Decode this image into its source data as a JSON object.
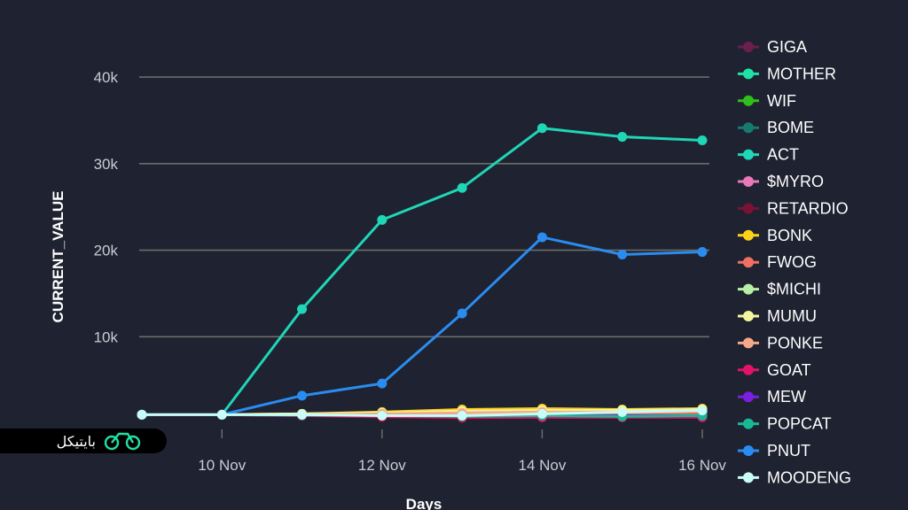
{
  "chart_data": {
    "type": "line",
    "xlabel": "Days",
    "ylabel": "CURRENT_VALUE",
    "x": [
      9,
      10,
      11,
      12,
      13,
      14,
      15,
      16
    ],
    "x_ticks": [
      {
        "value": 10,
        "label": "10 Nov"
      },
      {
        "value": 12,
        "label": "12 Nov"
      },
      {
        "value": 14,
        "label": "14 Nov"
      },
      {
        "value": 16,
        "label": "16 Nov"
      }
    ],
    "y_ticks": [
      {
        "value": 10000,
        "label": "10k"
      },
      {
        "value": 20000,
        "label": "20k"
      },
      {
        "value": 30000,
        "label": "30k"
      },
      {
        "value": 40000,
        "label": "40k"
      }
    ],
    "xlim": [
      9,
      16
    ],
    "ylim": [
      -500,
      44000
    ],
    "grid": true,
    "legend_position": "right",
    "series": [
      {
        "name": "GIGA",
        "color": "#6b1f4f",
        "values": [
          1000,
          1000,
          1000,
          1000,
          1000,
          1100,
          1100,
          1200
        ]
      },
      {
        "name": "MOTHER",
        "color": "#1ee3a6",
        "values": [
          1000,
          1000,
          1000,
          900,
          800,
          900,
          900,
          1000
        ]
      },
      {
        "name": "WIF",
        "color": "#2fc11a",
        "values": [
          1000,
          1000,
          1000,
          1000,
          1000,
          1000,
          1000,
          1000
        ]
      },
      {
        "name": "BOME",
        "color": "#177a6e",
        "values": [
          1000,
          1000,
          950,
          900,
          900,
          950,
          950,
          1000
        ]
      },
      {
        "name": "ACT",
        "color": "#1fd6b6",
        "values": [
          1000,
          1000,
          13200,
          23500,
          27200,
          34100,
          33100,
          32700
        ]
      },
      {
        "name": "$MYRO",
        "color": "#e879b8",
        "values": [
          1000,
          1000,
          1000,
          1000,
          1000,
          1050,
          1050,
          1100
        ]
      },
      {
        "name": "RETARDIO",
        "color": "#7a1236",
        "values": [
          1000,
          1000,
          900,
          700,
          600,
          700,
          700,
          800
        ]
      },
      {
        "name": "BONK",
        "color": "#ffd21a",
        "values": [
          1000,
          1000,
          1100,
          1300,
          1600,
          1700,
          1600,
          1700
        ]
      },
      {
        "name": "FWOG",
        "color": "#f07163",
        "values": [
          1000,
          1000,
          1000,
          1000,
          1100,
          1100,
          1150,
          1200
        ]
      },
      {
        "name": "$MICHI",
        "color": "#b6f0a6",
        "values": [
          1000,
          1000,
          1050,
          1100,
          1200,
          1300,
          1300,
          1400
        ]
      },
      {
        "name": "MUMU",
        "color": "#f5f5a0",
        "values": [
          1000,
          1000,
          1100,
          1200,
          1400,
          1500,
          1500,
          1600
        ]
      },
      {
        "name": "PONKE",
        "color": "#f5a98a",
        "values": [
          1000,
          1000,
          1000,
          1100,
          1200,
          1300,
          1300,
          1400
        ]
      },
      {
        "name": "GOAT",
        "color": "#e3126a",
        "values": [
          1000,
          1000,
          900,
          800,
          700,
          700,
          700,
          700
        ]
      },
      {
        "name": "MEW",
        "color": "#7b1fe0",
        "values": [
          1000,
          1000,
          950,
          900,
          900,
          900,
          900,
          900
        ]
      },
      {
        "name": "POPCAT",
        "color": "#18b894",
        "values": [
          1000,
          1000,
          950,
          900,
          800,
          900,
          800,
          900
        ]
      },
      {
        "name": "PNUT",
        "color": "#2a8cf0",
        "values": [
          1000,
          1000,
          3200,
          4600,
          12700,
          21500,
          19500,
          19800
        ]
      },
      {
        "name": "MOODENG",
        "color": "#c8fcf5",
        "values": [
          1000,
          1000,
          1000,
          900,
          900,
          1100,
          1300,
          1500
        ]
      }
    ]
  },
  "watermark": {
    "text": "بایتیکل",
    "color": "#1ee3a6"
  }
}
